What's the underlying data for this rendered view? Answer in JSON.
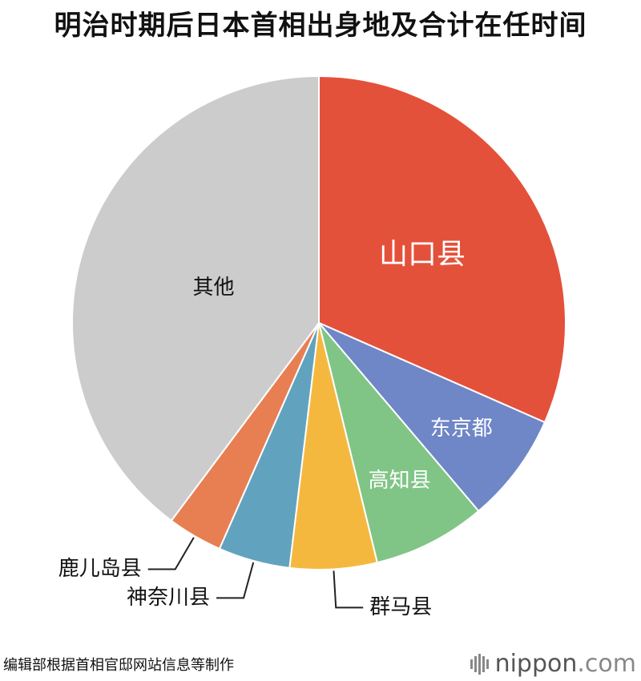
{
  "chart_data": {
    "type": "pie",
    "title": "明治时期后日本首相出身地及合计在任时间",
    "slices": [
      {
        "label": "山口县",
        "value": 31.6,
        "color": "#E4513A",
        "label_color": "#ffffff",
        "label_mode": "inside",
        "label_size": 36
      },
      {
        "label": "东京都",
        "value": 7.2,
        "color": "#6F86C7",
        "label_color": "#ffffff",
        "label_mode": "inside",
        "label_size": 26
      },
      {
        "label": "高知县",
        "value": 7.4,
        "color": "#80C586",
        "label_color": "#ffffff",
        "label_mode": "inside",
        "label_size": 26
      },
      {
        "label": "群马县",
        "value": 5.7,
        "color": "#F5B83F",
        "label_color": "#111111",
        "label_mode": "outside-right",
        "label_size": 26
      },
      {
        "label": "神奈川县",
        "value": 4.7,
        "color": "#61A3BE",
        "label_color": "#111111",
        "label_mode": "outside-left",
        "label_size": 26
      },
      {
        "label": "鹿儿岛县",
        "value": 3.6,
        "color": "#E77F53",
        "label_color": "#111111",
        "label_mode": "outside-left",
        "label_size": 26
      },
      {
        "label": "其他",
        "value": 39.8,
        "color": "#CCCCCC",
        "label_color": "#111111",
        "label_mode": "inside",
        "label_size": 26
      }
    ]
  },
  "source": "编辑部根据首相官邸网站信息等制作",
  "logo": {
    "name": "nippon",
    "domain": ".com"
  }
}
